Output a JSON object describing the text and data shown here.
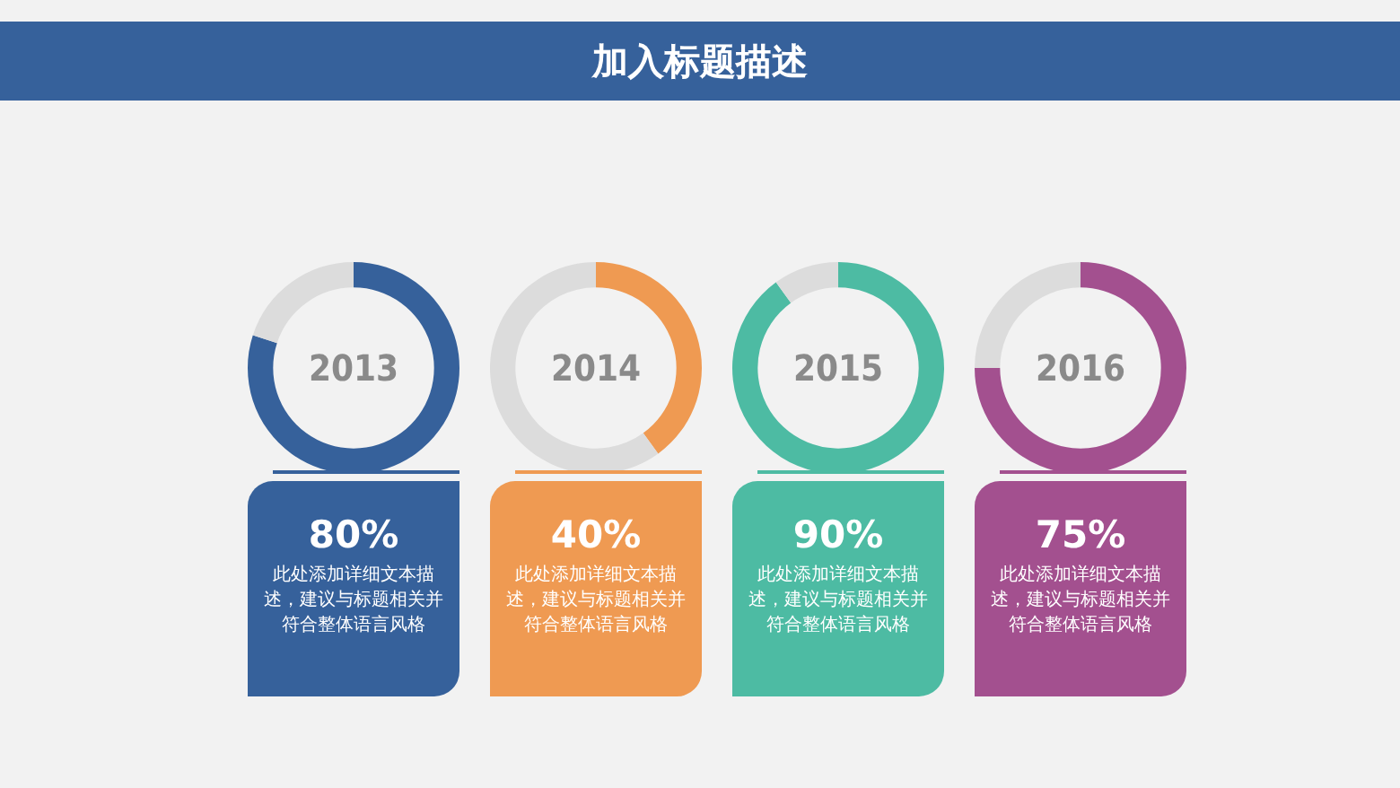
{
  "chart_data": [
    {
      "type": "other",
      "title": "加入标题描述"
    },
    {
      "type": "donut",
      "title": "2013",
      "categories": [
        null,
        null
      ],
      "values": [
        80,
        20
      ],
      "colors": [
        "#36619b",
        "#dcdcdc"
      ],
      "annotations": [
        "80%",
        "此处添加详细文本描述，建议与标题相关并符合整体语言风格"
      ]
    },
    {
      "type": "donut",
      "title": "2014",
      "categories": [
        null,
        null
      ],
      "values": [
        40,
        60
      ],
      "colors": [
        "#ef9a52",
        "#dcdcdc"
      ],
      "annotations": [
        "40%",
        "此处添加详细文本描述，建议与标题相关并符合整体语言风格"
      ]
    },
    {
      "type": "donut",
      "title": "2015",
      "categories": [
        null,
        null
      ],
      "values": [
        90,
        10
      ],
      "colors": [
        "#4dbba3",
        "#dcdcdc"
      ],
      "annotations": [
        "90%",
        "此处添加详细文本描述，建议与标题相关并符合整体语言风格"
      ]
    },
    {
      "type": "donut",
      "title": "2016",
      "categories": [
        null,
        null
      ],
      "values": [
        75,
        25
      ],
      "colors": [
        "#a3508f",
        "#dcdcdc"
      ],
      "annotations": [
        "75%",
        "此处添加详细文本描述，建议与标题相关并符合整体语言风格"
      ]
    }
  ]
}
